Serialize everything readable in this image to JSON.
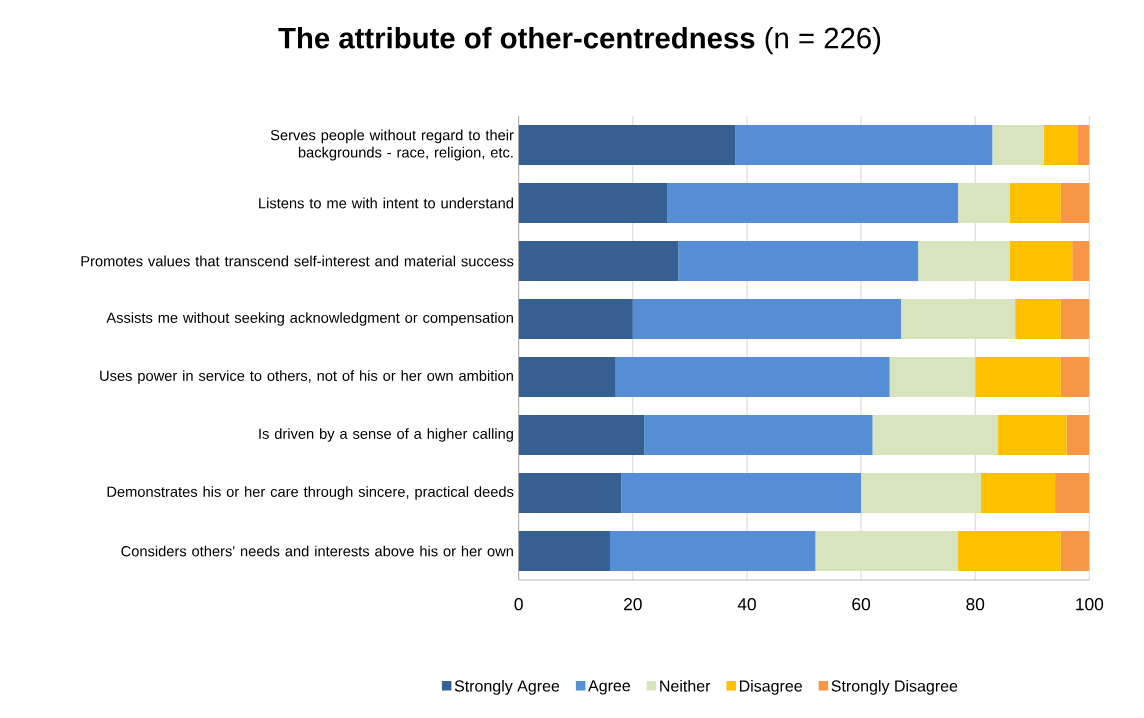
{
  "chart_data": {
    "type": "bar",
    "orientation": "horizontal",
    "stacked": true,
    "title": "**The attribute of other-centredness** (n = 226)",
    "categories": [
      "Serves people without regard to their backgrounds - race, religion, etc.",
      "Listens to me with intent to understand",
      "Promotes values that transcend self-interest and material success",
      "Assists me without seeking acknowledgment or compensation",
      "Uses power in service to others, not of his or her own ambition",
      "Is driven by a sense of a higher calling",
      "Demonstrates his or her care through sincere, practical deeds",
      "Considers others' needs and interests above his or her own"
    ],
    "series": [
      {
        "name": "Strongly Agree",
        "color": "#376092",
        "values": [
          38,
          26,
          28,
          20,
          17,
          22,
          18,
          16
        ]
      },
      {
        "name": "Agree",
        "color": "#558ed5",
        "values": [
          45,
          51,
          42,
          47,
          48,
          40,
          42,
          36
        ]
      },
      {
        "name": "Neither",
        "color": "#d7e4bd",
        "values": [
          9,
          9,
          16,
          20,
          15,
          22,
          21,
          25
        ]
      },
      {
        "name": "Disagree",
        "color": "#ffc000",
        "values": [
          6,
          9,
          11,
          8,
          15,
          12,
          13,
          18
        ]
      },
      {
        "name": "Strongly Disagree",
        "color": "#f79646",
        "values": [
          2,
          5,
          3,
          5,
          5,
          4,
          6,
          5
        ]
      }
    ],
    "xlim": [
      0,
      100
    ],
    "xticks": [
      0,
      20,
      40,
      60,
      80,
      100
    ],
    "grid": "x",
    "legend": "bottom"
  }
}
